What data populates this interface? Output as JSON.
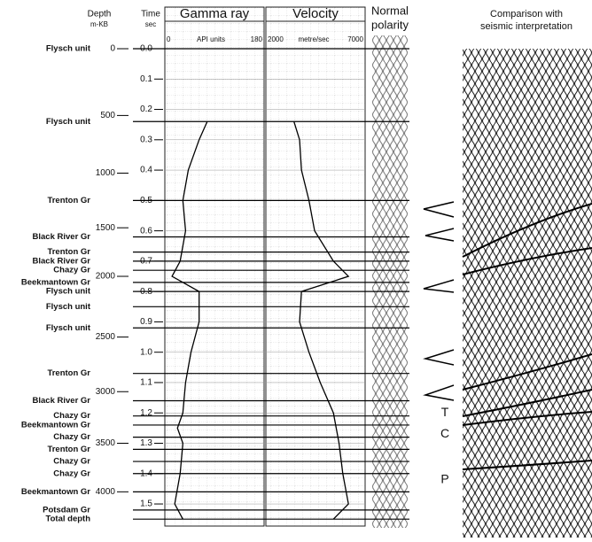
{
  "headers": {
    "depth": "Depth",
    "depth_unit": "m-KB",
    "time": "Time",
    "time_unit": "sec",
    "gamma": "Gamma ray",
    "gamma_unit": "API units",
    "gamma_range": [
      0,
      180
    ],
    "velocity": "Velocity",
    "velocity_unit": "metre/sec",
    "velocity_range": [
      2000,
      7000
    ],
    "polarity_1": "Normal",
    "polarity_2": "polarity",
    "seismic_1": "Comparison with",
    "seismic_2": "seismic interpretation"
  },
  "time_ticks": [
    {
      "value": 0,
      "label": "0.0"
    },
    0.1,
    0.2,
    0.3,
    0.4,
    0.5,
    0.6,
    0.7,
    0.8,
    0.9,
    {
      "value": 1,
      "label": "1.0"
    },
    1.1,
    1.2,
    1.3,
    1.4,
    1.5
  ],
  "depth_ticks": [
    {
      "depth": 0,
      "time": 0.0
    },
    {
      "depth": 500,
      "time": 0.22
    },
    {
      "depth": 1000,
      "time": 0.41
    },
    {
      "depth": 1500,
      "time": 0.59
    },
    {
      "depth": 2000,
      "time": 0.75
    },
    {
      "depth": 2500,
      "time": 0.95
    },
    {
      "depth": 3000,
      "time": 1.13
    },
    {
      "depth": 3500,
      "time": 1.3
    },
    {
      "depth": 4000,
      "time": 1.46
    }
  ],
  "formations": [
    {
      "label": "Flysch unit",
      "time": 0.0
    },
    {
      "label": "Flysch unit",
      "time": 0.24
    },
    {
      "label": "Trenton Gr",
      "time": 0.5
    },
    {
      "label": "Black River Gr",
      "time": 0.62
    },
    {
      "label": "Trenton Gr",
      "time": 0.67
    },
    {
      "label": "Black River Gr",
      "time": 0.7
    },
    {
      "label": "Chazy Gr",
      "time": 0.73
    },
    {
      "label": "Beekmantown Gr",
      "time": 0.77
    },
    {
      "label": "Flysch unit",
      "time": 0.8
    },
    {
      "label": "Flysch unit",
      "time": 0.85
    },
    {
      "label": "Flysch unit",
      "time": 0.92
    },
    {
      "label": "Trenton Gr",
      "time": 1.07
    },
    {
      "label": "Black River Gr",
      "time": 1.16
    },
    {
      "label": "Chazy Gr",
      "time": 1.21
    },
    {
      "label": "Beekmantown Gr",
      "time": 1.24
    },
    {
      "label": "Chazy Gr",
      "time": 1.28
    },
    {
      "label": "Trenton Gr",
      "time": 1.32
    },
    {
      "label": "Chazy Gr",
      "time": 1.36
    },
    {
      "label": "Chazy Gr",
      "time": 1.4
    },
    {
      "label": "Beekmantown Gr",
      "time": 1.46
    },
    {
      "label": "Potsdam Gr",
      "time": 1.52
    },
    {
      "label": "Total depth",
      "time": 1.55
    }
  ],
  "gamma_ray": {
    "time": [
      0.24,
      0.3,
      0.4,
      0.5,
      0.6,
      0.7,
      0.75,
      0.8,
      0.9,
      1.0,
      1.1,
      1.2,
      1.25,
      1.3,
      1.4,
      1.45,
      1.5,
      1.55
    ],
    "values": [
      75,
      60,
      40,
      30,
      35,
      25,
      10,
      60,
      60,
      45,
      35,
      30,
      20,
      30,
      25,
      20,
      15,
      30
    ]
  },
  "velocity": {
    "time": [
      0.24,
      0.3,
      0.4,
      0.5,
      0.6,
      0.7,
      0.75,
      0.8,
      0.9,
      1.0,
      1.1,
      1.2,
      1.3,
      1.4,
      1.5,
      1.55
    ],
    "values": [
      3400,
      3700,
      3800,
      4200,
      4500,
      5500,
      6300,
      3800,
      3700,
      4200,
      4800,
      5500,
      5800,
      6000,
      6300,
      5500
    ]
  },
  "seismic_labels": [
    {
      "label": "T",
      "time": 1.2
    },
    {
      "label": "C",
      "time": 1.27
    },
    {
      "label": "P",
      "time": 1.42
    }
  ]
}
